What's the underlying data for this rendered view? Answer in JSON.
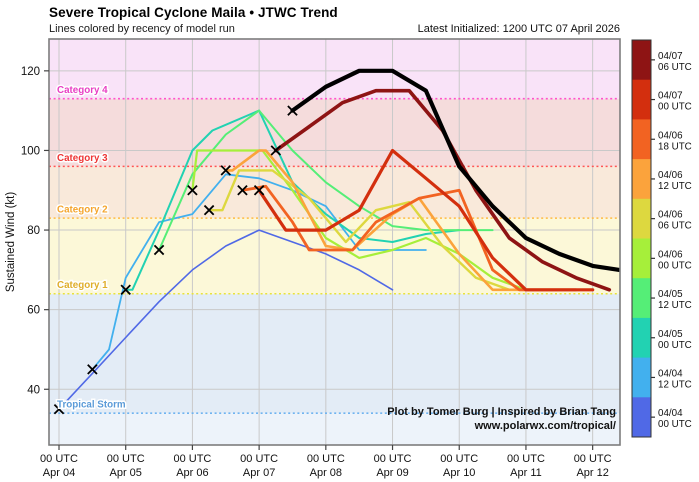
{
  "header": {
    "title": "Severe Tropical Cyclone Maila • JTWC Trend",
    "subtitle": "Lines colored by recency of model run",
    "latest_initialized": "Latest Initialized: 1200 UTC 07 April 2026"
  },
  "chart_data": {
    "type": "line",
    "title": "Severe Tropical Cyclone Maila • JTWC Trend",
    "xlabel": "",
    "ylabel": "Sustained Wind (kt)",
    "ylim": [
      26,
      128
    ],
    "xlim_days": [
      3.85,
      12.41
    ],
    "y_ticks": [
      40,
      60,
      80,
      100,
      120
    ],
    "x_ticks": [
      {
        "day": 4,
        "time": "00 UTC",
        "date": "Apr 04"
      },
      {
        "day": 5,
        "time": "00 UTC",
        "date": "Apr 05"
      },
      {
        "day": 6,
        "time": "00 UTC",
        "date": "Apr 06"
      },
      {
        "day": 7,
        "time": "00 UTC",
        "date": "Apr 07"
      },
      {
        "day": 8,
        "time": "00 UTC",
        "date": "Apr 08"
      },
      {
        "day": 9,
        "time": "00 UTC",
        "date": "Apr 09"
      },
      {
        "day": 10,
        "time": "00 UTC",
        "date": "Apr 10"
      },
      {
        "day": 11,
        "time": "00 UTC",
        "date": "Apr 11"
      },
      {
        "day": 12,
        "time": "00 UTC",
        "date": "Apr 12"
      }
    ],
    "grid": true,
    "bands": [
      {
        "name": "below-tropical-storm",
        "from": 26,
        "to": 34,
        "color": "#edf3fa"
      },
      {
        "name": "tropical-storm",
        "from": 34,
        "to": 64,
        "color": "#e3ecf6"
      },
      {
        "name": "category-1",
        "from": 64,
        "to": 83,
        "color": "#fcf8d8"
      },
      {
        "name": "category-2",
        "from": 83,
        "to": 96,
        "color": "#f9e9da"
      },
      {
        "name": "category-3",
        "from": 96,
        "to": 113,
        "color": "#f5dcdc"
      },
      {
        "name": "category-4",
        "from": 113,
        "to": 128,
        "color": "#f9e3f8"
      }
    ],
    "thresholds": [
      {
        "label": "Tropical Storm",
        "value": 34,
        "line_color": "#6fb3f0",
        "text_color": "#5b9bd8"
      },
      {
        "label": "Category 1",
        "value": 64,
        "line_color": "#e8e23c",
        "text_color": "#dfae2a"
      },
      {
        "label": "Category 2",
        "value": 83,
        "line_color": "#ffbb44",
        "text_color": "#f5a52e"
      },
      {
        "label": "Category 3",
        "value": 96,
        "line_color": "#ff5555",
        "text_color": "#ee3535"
      },
      {
        "label": "Category 4",
        "value": 113,
        "line_color": "#ff53cc",
        "text_color": "#e83ec4"
      }
    ],
    "best_track_markers": {
      "marker": "x",
      "color": "#000000",
      "points_day_kt": [
        [
          4.0,
          35
        ],
        [
          4.5,
          45
        ],
        [
          5.0,
          65
        ],
        [
          5.5,
          75
        ],
        [
          6.0,
          90
        ],
        [
          6.25,
          85
        ],
        [
          6.5,
          95
        ],
        [
          6.75,
          90
        ],
        [
          7.0,
          90
        ],
        [
          7.25,
          100
        ],
        [
          7.5,
          110
        ]
      ]
    },
    "series": [
      {
        "name": "04/04 00 UTC",
        "color": "#5069e6",
        "width": 1.6,
        "points_day_kt": [
          [
            4.0,
            35
          ],
          [
            4.5,
            44
          ],
          [
            5.0,
            53
          ],
          [
            5.5,
            62
          ],
          [
            6.0,
            70
          ],
          [
            6.5,
            76
          ],
          [
            7.0,
            80
          ],
          [
            7.5,
            77
          ],
          [
            8.0,
            74
          ],
          [
            8.5,
            70
          ],
          [
            9.0,
            65
          ]
        ]
      },
      {
        "name": "04/04 12 UTC",
        "color": "#42b0ee",
        "width": 1.8,
        "points_day_kt": [
          [
            4.5,
            45
          ],
          [
            4.75,
            50
          ],
          [
            5.0,
            68
          ],
          [
            5.5,
            82
          ],
          [
            6.0,
            84
          ],
          [
            6.5,
            94
          ],
          [
            7.0,
            93
          ],
          [
            7.5,
            90
          ],
          [
            8.0,
            86
          ],
          [
            8.5,
            75
          ],
          [
            9.0,
            75
          ],
          [
            9.5,
            75
          ]
        ]
      },
      {
        "name": "04/05 00 UTC",
        "color": "#22d2b2",
        "width": 2.0,
        "points_day_kt": [
          [
            5.0,
            65
          ],
          [
            5.1,
            65
          ],
          [
            5.5,
            80
          ],
          [
            6.0,
            100
          ],
          [
            6.3,
            105
          ],
          [
            7.0,
            110
          ],
          [
            7.5,
            92
          ],
          [
            8.0,
            84
          ],
          [
            8.5,
            78
          ],
          [
            9.0,
            77
          ],
          [
            9.5,
            79
          ],
          [
            10.0,
            80
          ]
        ]
      },
      {
        "name": "04/05 12 UTC",
        "color": "#55ee77",
        "width": 2.0,
        "points_day_kt": [
          [
            5.5,
            75
          ],
          [
            6.0,
            94
          ],
          [
            6.5,
            104
          ],
          [
            7.0,
            110
          ],
          [
            7.5,
            100
          ],
          [
            8.0,
            92
          ],
          [
            8.5,
            86
          ],
          [
            9.0,
            81
          ],
          [
            9.5,
            80
          ],
          [
            10.0,
            80
          ],
          [
            10.5,
            80
          ]
        ]
      },
      {
        "name": "04/06 00 UTC",
        "color": "#a6ef3a",
        "width": 2.2,
        "points_day_kt": [
          [
            6.0,
            90
          ],
          [
            6.07,
            100
          ],
          [
            7.05,
            100
          ],
          [
            7.5,
            90
          ],
          [
            8.0,
            78
          ],
          [
            8.5,
            73
          ],
          [
            9.0,
            75
          ],
          [
            9.5,
            78
          ],
          [
            10.0,
            74
          ],
          [
            10.5,
            68
          ],
          [
            11.0,
            65
          ]
        ]
      },
      {
        "name": "04/06 06 UTC",
        "color": "#ddd83f",
        "width": 2.4,
        "points_day_kt": [
          [
            6.25,
            85
          ],
          [
            6.45,
            85
          ],
          [
            6.7,
            95
          ],
          [
            7.2,
            95
          ],
          [
            7.75,
            88
          ],
          [
            8.3,
            77
          ],
          [
            8.75,
            85
          ],
          [
            9.25,
            87
          ],
          [
            9.75,
            76
          ],
          [
            10.25,
            68
          ],
          [
            10.75,
            65
          ],
          [
            11.25,
            65
          ]
        ]
      },
      {
        "name": "04/06 12 UTC",
        "color": "#fba33c",
        "width": 2.6,
        "points_day_kt": [
          [
            6.5,
            95
          ],
          [
            6.6,
            95
          ],
          [
            7.0,
            100
          ],
          [
            7.1,
            100
          ],
          [
            7.5,
            92
          ],
          [
            8.0,
            76
          ],
          [
            8.4,
            75
          ],
          [
            9.0,
            84
          ],
          [
            9.4,
            88
          ],
          [
            10.0,
            74
          ],
          [
            10.5,
            65
          ],
          [
            11.0,
            65
          ],
          [
            11.5,
            65
          ]
        ]
      },
      {
        "name": "04/06 18 UTC",
        "color": "#f26322",
        "width": 2.8,
        "points_day_kt": [
          [
            6.75,
            90
          ],
          [
            7.1,
            91
          ],
          [
            7.5,
            82
          ],
          [
            7.75,
            75
          ],
          [
            8.4,
            75
          ],
          [
            8.75,
            82
          ],
          [
            9.4,
            88
          ],
          [
            10.0,
            90
          ],
          [
            10.5,
            70
          ],
          [
            10.9,
            65
          ],
          [
            11.75,
            65
          ]
        ]
      },
      {
        "name": "04/07 00 UTC",
        "color": "#d32f0e",
        "width": 3.2,
        "points_day_kt": [
          [
            7.0,
            90
          ],
          [
            7.4,
            80
          ],
          [
            8.0,
            80
          ],
          [
            8.5,
            85
          ],
          [
            9.0,
            100
          ],
          [
            9.5,
            93
          ],
          [
            10.0,
            86
          ],
          [
            10.5,
            73
          ],
          [
            11.0,
            65
          ],
          [
            11.5,
            65
          ],
          [
            12.0,
            65
          ]
        ]
      },
      {
        "name": "04/07 06 UTC",
        "color": "#8e1414",
        "width": 3.6,
        "points_day_kt": [
          [
            7.25,
            100
          ],
          [
            7.75,
            106
          ],
          [
            8.25,
            112
          ],
          [
            8.75,
            115
          ],
          [
            9.25,
            115
          ],
          [
            9.75,
            105
          ],
          [
            10.25,
            90
          ],
          [
            10.75,
            78
          ],
          [
            11.25,
            72
          ],
          [
            11.75,
            68
          ],
          [
            12.25,
            65
          ]
        ]
      },
      {
        "name": "Latest 04/07 12 UTC",
        "color": "#000000",
        "width": 4.2,
        "points_day_kt": [
          [
            7.5,
            110
          ],
          [
            8.0,
            116
          ],
          [
            8.5,
            120
          ],
          [
            9.0,
            120
          ],
          [
            9.5,
            115
          ],
          [
            10.0,
            96
          ],
          [
            10.5,
            86
          ],
          [
            11.0,
            78
          ],
          [
            11.5,
            74
          ],
          [
            12.0,
            71
          ],
          [
            12.4,
            70
          ]
        ]
      }
    ],
    "attribution": [
      "Plot by Tomer Burg | Inspired by Brian Tang",
      "www.polarwx.com/tropical/"
    ],
    "legend_position": "right"
  },
  "colorbar": {
    "entries": [
      {
        "date": "04/07",
        "time": "06 UTC",
        "color": "#8e1414"
      },
      {
        "date": "04/07",
        "time": "00 UTC",
        "color": "#d32f0e"
      },
      {
        "date": "04/06",
        "time": "18 UTC",
        "color": "#f26322"
      },
      {
        "date": "04/06",
        "time": "12 UTC",
        "color": "#fba33c"
      },
      {
        "date": "04/06",
        "time": "06 UTC",
        "color": "#ddd83f"
      },
      {
        "date": "04/06",
        "time": "00 UTC",
        "color": "#a6ef3a"
      },
      {
        "date": "04/05",
        "time": "12 UTC",
        "color": "#55ee77"
      },
      {
        "date": "04/05",
        "time": "00 UTC",
        "color": "#22d2b2"
      },
      {
        "date": "04/04",
        "time": "12 UTC",
        "color": "#42b0ee"
      },
      {
        "date": "04/04",
        "time": "00 UTC",
        "color": "#5069e6"
      }
    ]
  }
}
